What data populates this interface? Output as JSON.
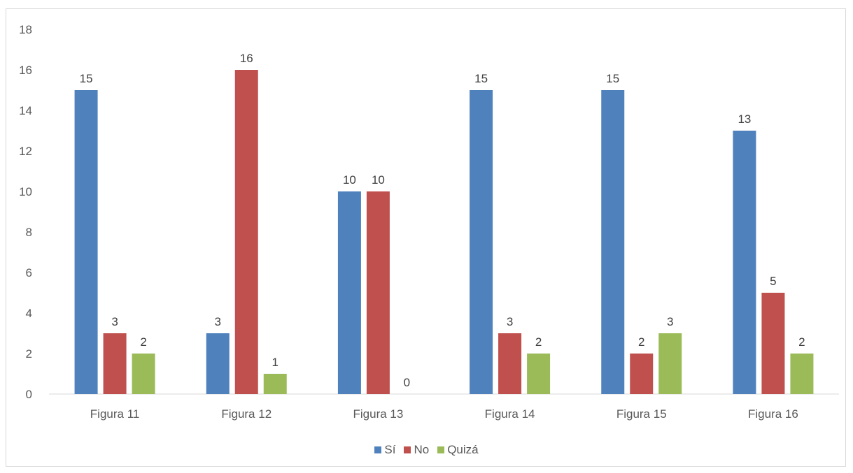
{
  "chart_data": {
    "type": "bar",
    "categories": [
      "Figura 11",
      "Figura 12",
      "Figura 13",
      "Figura 14",
      "Figura 15",
      "Figura 16"
    ],
    "series": [
      {
        "name": "Sí",
        "color": "#4f81bd",
        "values": [
          15,
          3,
          10,
          15,
          15,
          13
        ]
      },
      {
        "name": "No",
        "color": "#c0504d",
        "values": [
          3,
          16,
          10,
          3,
          2,
          5
        ]
      },
      {
        "name": "Quizá",
        "color": "#9bbb59",
        "values": [
          2,
          1,
          0,
          2,
          3,
          2
        ]
      }
    ],
    "ylim": [
      0,
      18
    ],
    "yticks": [
      "0",
      "2",
      "4",
      "6",
      "8",
      "10",
      "12",
      "14",
      "16",
      "18"
    ],
    "grid": false,
    "legend": "bottom",
    "data_labels": true
  }
}
